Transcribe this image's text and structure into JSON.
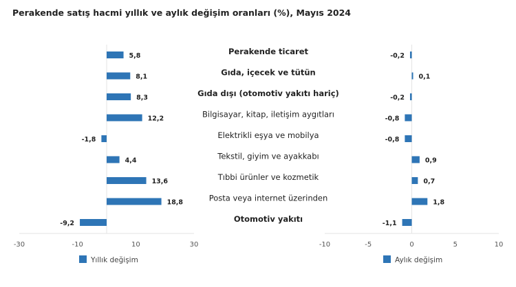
{
  "title": "Perakende satış hacmi yıllık ve aylık değişim oranları (%), Mayıs 2024",
  "chart_data": [
    {
      "type": "bar",
      "orientation": "horizontal",
      "categories": [
        "Perakende ticaret",
        "Gıda, içecek ve tütün",
        "Gıda dışı (otomotiv yakıtı hariç)",
        "Bilgisayar, kitap, iletişim aygıtları",
        "Elektrikli eşya ve mobilya",
        "Tekstil, giyim ve ayakkabı",
        "Tıbbi ürünler ve kozmetik",
        "Posta veya internet üzerinden",
        "Otomotiv yakıtı"
      ],
      "bold_categories": [
        "Perakende ticaret",
        "Gıda, içecek ve tütün",
        "Gıda dışı (otomotiv yakıtı hariç)",
        "Otomotiv yakıtı"
      ],
      "series": [
        {
          "name": "Yıllık değişim",
          "values": [
            5.8,
            8.1,
            8.3,
            12.2,
            -1.8,
            4.4,
            13.6,
            18.8,
            -9.2
          ],
          "labels": [
            "5,8",
            "8,1",
            "8,3",
            "12,2",
            "-1,8",
            "4,4",
            "13,6",
            "18,8",
            "-9,2"
          ],
          "color": "#2e75b6"
        }
      ],
      "xlim": [
        -30,
        30
      ],
      "xticks": [
        "-30",
        "-10",
        "10",
        "30"
      ],
      "xtick_values": [
        -30,
        -10,
        10,
        30
      ],
      "legend": "bottom",
      "grid": false
    },
    {
      "type": "bar",
      "orientation": "horizontal",
      "series": [
        {
          "name": "Aylık değişim",
          "values": [
            -0.2,
            0.1,
            -0.2,
            -0.8,
            -0.8,
            0.9,
            0.7,
            1.8,
            -1.1
          ],
          "labels": [
            "-0,2",
            "0,1",
            "-0,2",
            "-0,8",
            "-0,8",
            "0,9",
            "0,7",
            "1,8",
            "-1,1"
          ],
          "color": "#2e75b6"
        }
      ],
      "xlim": [
        -10,
        10
      ],
      "xticks": [
        "-10",
        "-5",
        "0",
        "5",
        "10"
      ],
      "xtick_values": [
        -10,
        -5,
        0,
        5,
        10
      ],
      "legend": "bottom",
      "grid": false
    }
  ]
}
